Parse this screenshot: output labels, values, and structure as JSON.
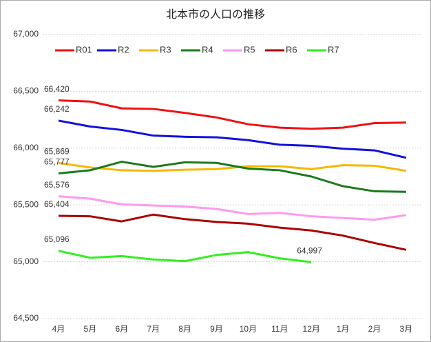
{
  "chart_data": {
    "type": "line",
    "title": "北本市の人口の推移",
    "categories": [
      "4月",
      "5月",
      "6月",
      "7月",
      "8月",
      "9月",
      "10月",
      "11月",
      "12月",
      "1月",
      "2月",
      "3月"
    ],
    "series": [
      {
        "name": "R01",
        "color": "#ee1111",
        "values": [
          66420,
          66410,
          66350,
          66345,
          66310,
          66270,
          66210,
          66180,
          66170,
          66180,
          66220,
          66225
        ],
        "value_labels": [
          "66,420",
          null,
          null,
          null,
          null,
          null,
          null,
          null,
          null,
          null,
          null,
          null
        ]
      },
      {
        "name": "R2",
        "color": "#1111dd",
        "values": [
          66242,
          66190,
          66160,
          66110,
          66100,
          66095,
          66070,
          66030,
          66020,
          65995,
          65980,
          65915
        ],
        "value_labels": [
          "66,242",
          null,
          null,
          null,
          null,
          null,
          null,
          null,
          null,
          null,
          null,
          null
        ]
      },
      {
        "name": "R3",
        "color": "#f5b800",
        "values": [
          65869,
          65830,
          65805,
          65800,
          65810,
          65815,
          65840,
          65840,
          65815,
          65850,
          65845,
          65800
        ],
        "value_labels": [
          "65,869",
          null,
          null,
          null,
          null,
          null,
          null,
          null,
          null,
          null,
          null,
          null
        ]
      },
      {
        "name": "R4",
        "color": "#1a7a1a",
        "values": [
          65777,
          65805,
          65880,
          65835,
          65875,
          65870,
          65820,
          65805,
          65750,
          65665,
          65620,
          65615
        ],
        "value_labels": [
          "65,777",
          null,
          null,
          null,
          null,
          null,
          null,
          null,
          null,
          null,
          null,
          null
        ]
      },
      {
        "name": "R5",
        "color": "#ff99ee",
        "values": [
          65576,
          65555,
          65505,
          65495,
          65485,
          65465,
          65420,
          65430,
          65400,
          65385,
          65370,
          65410
        ],
        "value_labels": [
          "65,576",
          null,
          null,
          null,
          null,
          null,
          null,
          null,
          null,
          null,
          null,
          null
        ]
      },
      {
        "name": "R6",
        "color": "#aa0000",
        "values": [
          65404,
          65400,
          65355,
          65415,
          65375,
          65350,
          65335,
          65300,
          65275,
          65230,
          65165,
          65105
        ],
        "value_labels": [
          "65,404",
          null,
          null,
          null,
          null,
          null,
          null,
          null,
          null,
          null,
          null,
          null
        ]
      },
      {
        "name": "R7",
        "color": "#33ee22",
        "values": [
          65096,
          65035,
          65050,
          65020,
          65005,
          65060,
          65085,
          65030,
          64997,
          null,
          null,
          null
        ],
        "value_labels": [
          "65,096",
          null,
          null,
          null,
          null,
          null,
          null,
          null,
          "64,997",
          null,
          null,
          null
        ]
      }
    ],
    "ylim": [
      64500,
      67000
    ],
    "yticks": [
      {
        "value": 64500,
        "label": "64,500"
      },
      {
        "value": 65000,
        "label": "65,000"
      },
      {
        "value": 65500,
        "label": "65,500"
      },
      {
        "value": 66000,
        "label": "66,000"
      },
      {
        "value": 66500,
        "label": "66,500"
      },
      {
        "value": 67000,
        "label": "67,000"
      }
    ],
    "grid": true,
    "legend": "top"
  }
}
